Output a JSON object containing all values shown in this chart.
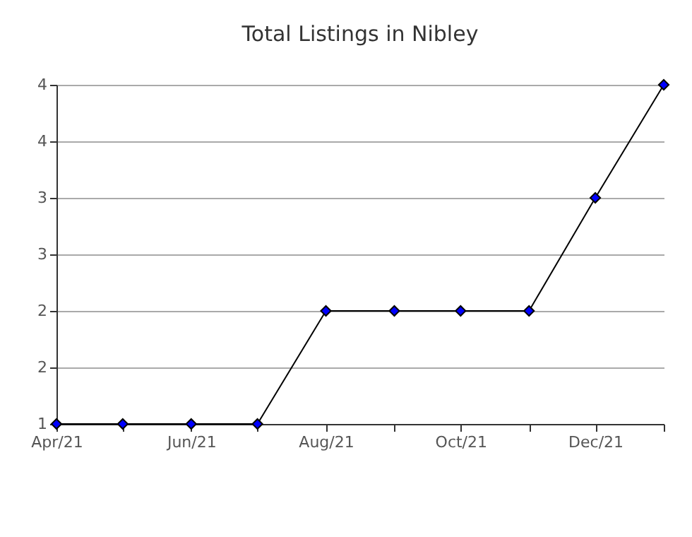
{
  "chart_data": {
    "type": "line",
    "title": "Total Listings in Nibley",
    "x": [
      "2021-04",
      "2021-05",
      "2021-06",
      "2021-07",
      "2021-08",
      "2021-09",
      "2021-10",
      "2021-11",
      "2021-12",
      "2022-01"
    ],
    "series": [
      {
        "color": "#0000ff",
        "values": [
          1,
          1,
          1,
          1,
          2,
          2,
          2,
          2,
          3,
          4
        ]
      }
    ],
    "xlim": [
      "2021-04",
      "2022-01"
    ],
    "xticks": [
      {
        "value": "2021-04",
        "label": "Apr/21"
      },
      {
        "value": "2021-05",
        "label": null
      },
      {
        "value": "2021-06",
        "label": "Jun/21"
      },
      {
        "value": "2021-07",
        "label": null
      },
      {
        "value": "2021-08",
        "label": "Aug/21"
      },
      {
        "value": "2021-09",
        "label": null
      },
      {
        "value": "2021-10",
        "label": "Oct/21"
      },
      {
        "value": "2021-11",
        "label": null
      },
      {
        "value": "2021-12",
        "label": "Dec/21"
      },
      {
        "value": "2022-01",
        "label": null
      }
    ],
    "ylim": [
      1,
      4
    ],
    "yticks": [
      1,
      {
        "value": 1.5,
        "label": "2"
      },
      2,
      {
        "value": 2.5,
        "label": "3"
      },
      3,
      {
        "value": 3.5,
        "label": "4"
      },
      4
    ],
    "grid": "y",
    "marker": "diamond",
    "line_style": "solid"
  }
}
